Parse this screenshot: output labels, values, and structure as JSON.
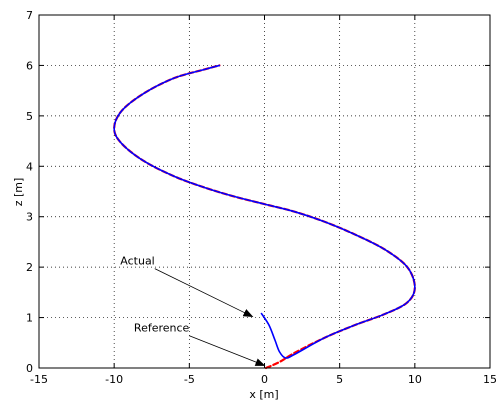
{
  "chart_data": {
    "type": "line",
    "title": "",
    "xlabel": "x [m]",
    "ylabel": "z [m]",
    "xlim": [
      -15,
      15
    ],
    "ylim": [
      0,
      7
    ],
    "grid": true,
    "xticks": [
      -15,
      -10,
      -5,
      0,
      5,
      10,
      15
    ],
    "yticks": [
      0,
      1,
      2,
      3,
      4,
      5,
      6,
      7
    ],
    "series": [
      {
        "name": "Reference",
        "color": "#ff0000",
        "style": "dashed",
        "points": [
          [
            0.1,
            0.0
          ],
          [
            1.0,
            0.12
          ],
          [
            2.0,
            0.3
          ],
          [
            4.0,
            0.6
          ],
          [
            6.0,
            0.85
          ],
          [
            8.0,
            1.07
          ],
          [
            9.5,
            1.3
          ],
          [
            10.0,
            1.6
          ],
          [
            9.5,
            2.0
          ],
          [
            8.0,
            2.35
          ],
          [
            6.0,
            2.65
          ],
          [
            4.0,
            2.9
          ],
          [
            2.0,
            3.1
          ],
          [
            0.0,
            3.25
          ],
          [
            -2.0,
            3.4
          ],
          [
            -4.0,
            3.58
          ],
          [
            -6.0,
            3.8
          ],
          [
            -8.0,
            4.1
          ],
          [
            -9.5,
            4.45
          ],
          [
            -10.0,
            4.75
          ],
          [
            -9.5,
            5.1
          ],
          [
            -8.0,
            5.45
          ],
          [
            -6.0,
            5.75
          ],
          [
            -4.0,
            5.92
          ],
          [
            -3.0,
            6.0
          ]
        ]
      },
      {
        "name": "Actual",
        "color": "#0000ff",
        "style": "solid",
        "points": [
          [
            -0.2,
            1.08
          ],
          [
            0.3,
            0.85
          ],
          [
            0.7,
            0.55
          ],
          [
            1.0,
            0.32
          ],
          [
            1.4,
            0.2
          ],
          [
            2.0,
            0.27
          ],
          [
            4.0,
            0.6
          ],
          [
            6.0,
            0.85
          ],
          [
            8.0,
            1.07
          ],
          [
            9.5,
            1.3
          ],
          [
            10.0,
            1.6
          ],
          [
            9.5,
            2.0
          ],
          [
            8.0,
            2.35
          ],
          [
            6.0,
            2.65
          ],
          [
            4.0,
            2.9
          ],
          [
            2.0,
            3.1
          ],
          [
            0.0,
            3.25
          ],
          [
            -2.0,
            3.4
          ],
          [
            -4.0,
            3.58
          ],
          [
            -6.0,
            3.8
          ],
          [
            -8.0,
            4.1
          ],
          [
            -9.5,
            4.45
          ],
          [
            -10.0,
            4.75
          ],
          [
            -9.5,
            5.1
          ],
          [
            -8.0,
            5.45
          ],
          [
            -6.0,
            5.75
          ],
          [
            -4.0,
            5.92
          ],
          [
            -3.0,
            6.0
          ]
        ]
      }
    ],
    "annotations": [
      {
        "text": "Actual",
        "point": [
          -0.8,
          1.02
        ],
        "label_anchor": [
          -7.3,
          2.05
        ]
      },
      {
        "text": "Reference",
        "point": [
          0.0,
          0.05
        ],
        "label_anchor": [
          -5.0,
          0.72
        ]
      }
    ]
  }
}
